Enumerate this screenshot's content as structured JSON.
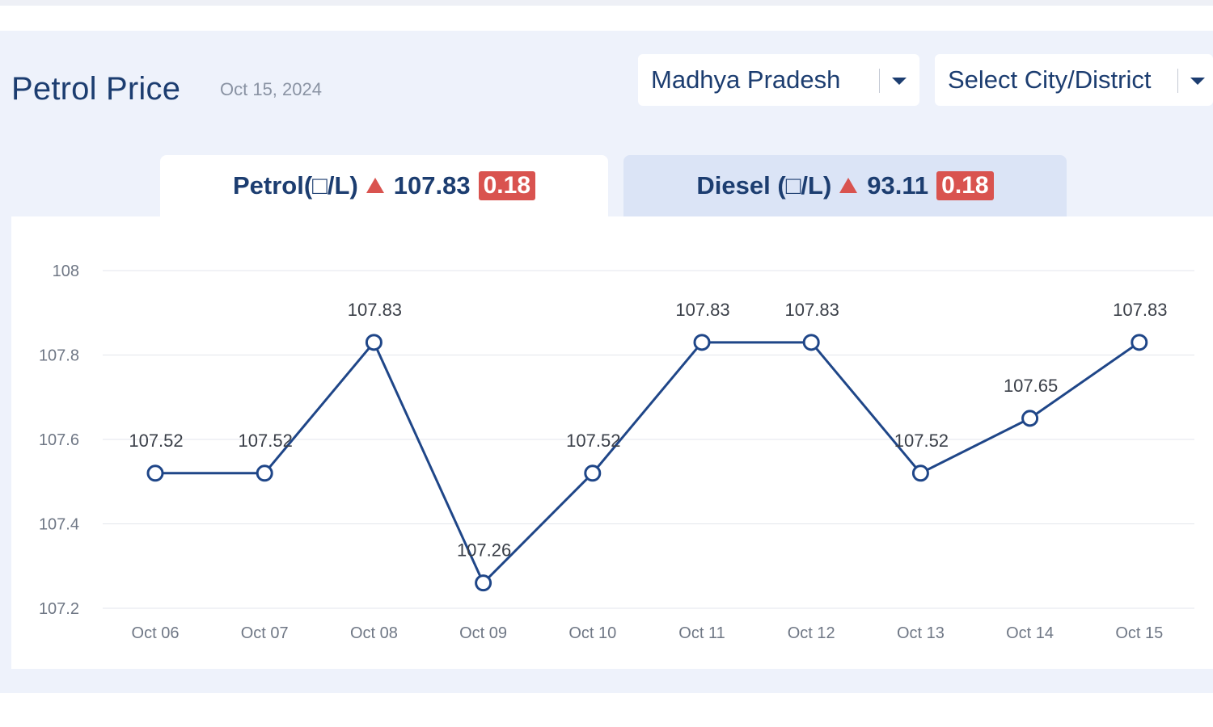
{
  "header": {
    "title": "Petrol Price",
    "date": "Oct 15, 2024"
  },
  "filters": {
    "state": {
      "selected": "Madhya Pradesh"
    },
    "city": {
      "selected": "Select City/District"
    }
  },
  "tabs": [
    {
      "label": "Petrol(□/L)",
      "price": "107.83",
      "change": "0.18",
      "trend": "up",
      "active": true
    },
    {
      "label": "Diesel (□/L)",
      "price": "93.11",
      "change": "0.18",
      "trend": "up",
      "active": false
    }
  ],
  "icons": {
    "trend": "triangle-up-icon",
    "dropdown": "chevron-down-icon"
  },
  "colors": {
    "line": "#1f4688",
    "accent_up": "#d9534f",
    "text_primary": "#1c3d70"
  },
  "chart_data": {
    "type": "line",
    "categories": [
      "Oct 06",
      "Oct 07",
      "Oct 08",
      "Oct 09",
      "Oct 10",
      "Oct 11",
      "Oct 12",
      "Oct 13",
      "Oct 14",
      "Oct 15"
    ],
    "series": [
      {
        "values": [
          107.52,
          107.52,
          107.83,
          107.26,
          107.52,
          107.83,
          107.83,
          107.52,
          107.65,
          107.83
        ],
        "labels": [
          "107.52",
          "107.52",
          "107.83",
          "107.26",
          "107.52",
          "107.83",
          "107.83",
          "107.52",
          "107.65",
          "107.83"
        ]
      }
    ],
    "yticks": [
      "108",
      "107.8",
      "107.6",
      "107.4",
      "107.2"
    ],
    "ylim": [
      107.2,
      108
    ],
    "grid": true,
    "legend": "none"
  }
}
